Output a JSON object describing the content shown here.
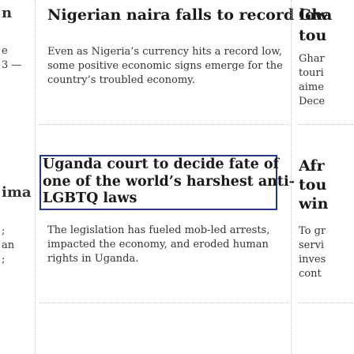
{
  "left_column": {
    "fragments": [
      "n",
      "e",
      "3 —",
      "ima",
      ";",
      "an",
      ";"
    ]
  },
  "main_column": {
    "story_1": {
      "headline": "Nigerian naira falls to record low",
      "summary_lines": [
        "Even as Nigeria’s currency hits a record low,",
        "some positive economic signs emerge for the",
        "country’s troubled economy."
      ]
    },
    "story_2": {
      "headline_lines": [
        "Uganda court to decide fate of",
        "one of the world’s harshest anti-",
        "LGBTQ laws"
      ],
      "summary_lines": [
        "The legislation has fueled mob-led arrests,",
        "impacted the economy, and eroded human",
        "rights in Uganda."
      ]
    }
  },
  "right_column": {
    "story_1": {
      "headline_lines": [
        "Gha",
        "tou"
      ],
      "summary_lines": [
        "Ghar",
        "touri",
        "aime",
        "Dece"
      ]
    },
    "story_2": {
      "headline_lines": [
        "Afr",
        "tou",
        "win"
      ],
      "summary_lines": [
        "To gr",
        "servi",
        "inves",
        "cont"
      ]
    }
  },
  "colors": {
    "focus_outline": "#1f3a8a",
    "divider": "#c7c7c7",
    "headline_text": "#1a1a1a",
    "body_text": "#333333"
  }
}
